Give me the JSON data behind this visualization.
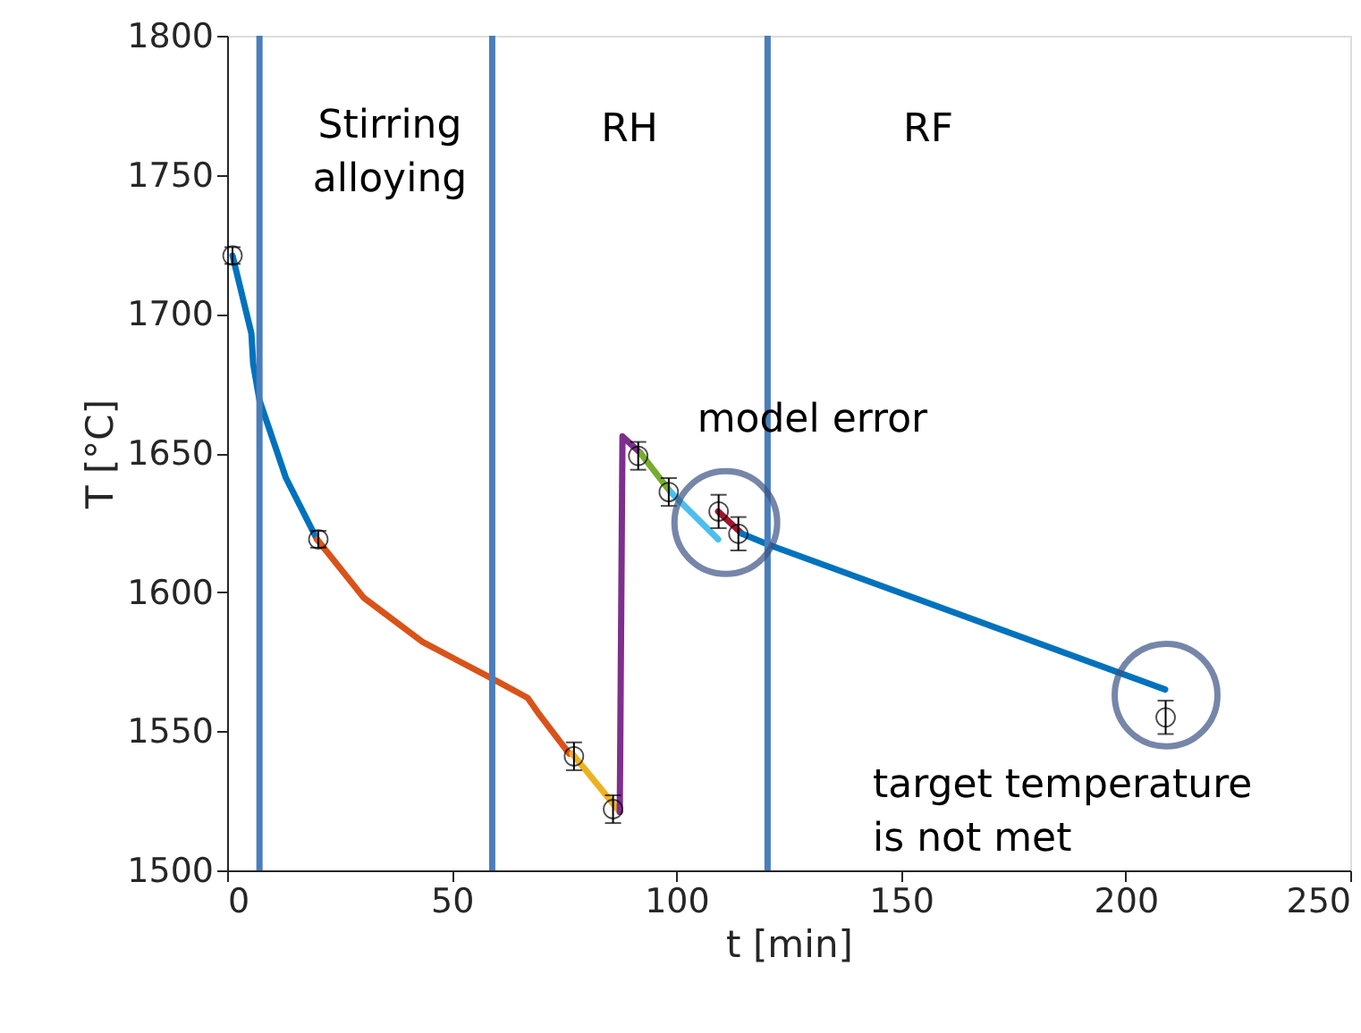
{
  "chart_data": {
    "type": "line",
    "xlabel": "t [min]",
    "ylabel": "T [°C]",
    "xlim": [
      0,
      250
    ],
    "xticks": [
      0,
      50,
      100,
      150,
      200,
      250
    ],
    "ylim": [
      1500,
      1800
    ],
    "yticks": [
      1500,
      1550,
      1600,
      1650,
      1700,
      1750,
      1800
    ],
    "grid": false,
    "line_style": "solid",
    "series": [
      {
        "color": "#0072bd",
        "x": [
          1.2,
          5.4,
          5.8,
          7.2,
          13.1,
          20
        ],
        "values": [
          1721,
          1693,
          1682,
          1669,
          1641,
          1619
        ]
      },
      {
        "color": "#d95319",
        "x": [
          20,
          30.4,
          43.6,
          58.9,
          66.9,
          69.5,
          76.1
        ],
        "values": [
          1619,
          1598,
          1582,
          1569,
          1562,
          1556,
          1542
        ]
      },
      {
        "color": "#edb120",
        "x": [
          76.8,
          87.4
        ],
        "values": [
          1542,
          1521
        ]
      },
      {
        "color": "#7e2f8e",
        "x": [
          87.4,
          88,
          92
        ],
        "values": [
          1521,
          1656,
          1650
        ]
      },
      {
        "color": "#77ac30",
        "x": [
          92,
          98.7
        ],
        "values": [
          1650,
          1636
        ]
      },
      {
        "color": "#4dbeee",
        "x": [
          98.7,
          109.3
        ],
        "values": [
          1636,
          1619
        ]
      },
      {
        "color": "#a2142f",
        "x": [
          109.3,
          114.6
        ],
        "values": [
          1629,
          1621
        ]
      },
      {
        "color": "#0072bd",
        "x": [
          114.6,
          120.6,
          208.8
        ],
        "values": [
          1621,
          1617,
          1565
        ]
      },
      {
        "type": "scatter",
        "color": "#000000",
        "marker": "circle",
        "x": [
          1.2,
          20.3,
          77.2,
          85.9,
          91.5,
          98.3,
          109.4,
          113.8,
          208.9
        ],
        "values": [
          1721,
          1619,
          1541,
          1522,
          1649,
          1636,
          1629,
          1621,
          1555
        ],
        "errors": [
          3,
          3,
          5,
          5,
          5,
          5,
          6,
          6,
          6
        ]
      }
    ],
    "ref_lines": [
      {
        "axis": "x",
        "value": 7.2,
        "color": "#4a7ebb"
      },
      {
        "axis": "x",
        "value": 59,
        "color": "#4a7ebb"
      },
      {
        "axis": "x",
        "value": 120.3,
        "color": "#4a7ebb"
      }
    ],
    "annotations": [
      "Stirring\nalloying",
      "RH",
      "RF",
      {
        "text": "model error",
        "x": 111,
        "y": 1625
      },
      {
        "text": "target temperature\nis not met",
        "x": 209,
        "y": 1563
      }
    ]
  }
}
